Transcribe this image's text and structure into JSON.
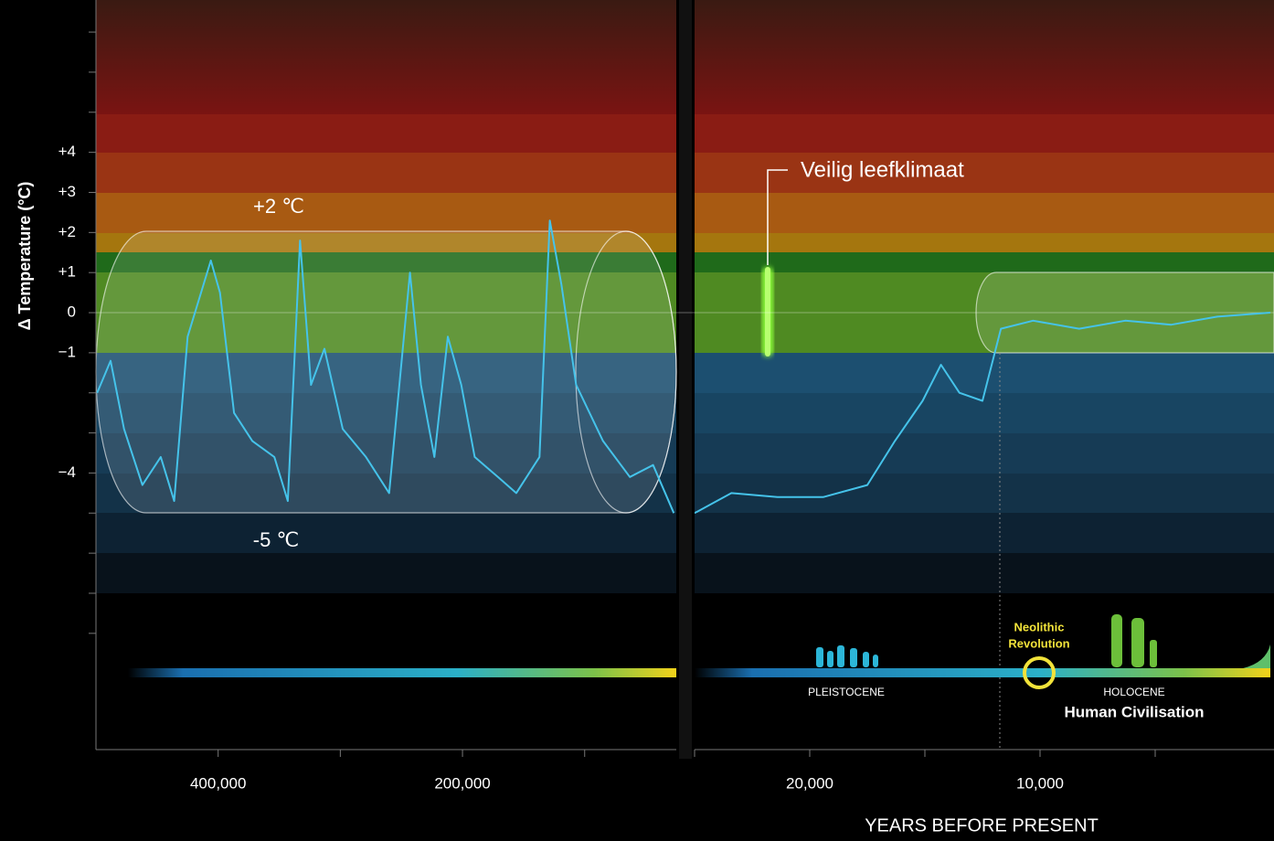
{
  "chart_data": [
    {
      "type": "line",
      "ylabel": "Δ Temperature (°C)",
      "xlim": [
        500000,
        25000
      ],
      "ylim": [
        -10.9,
        7.8
      ],
      "xticks": [
        {
          "value": 400000,
          "label": "400,000"
        },
        {
          "value": 300000,
          "label": null
        },
        {
          "value": 200000,
          "label": "200,000"
        },
        {
          "value": 100000,
          "label": null
        }
      ],
      "yticks": [
        {
          "value": 7,
          "label": null
        },
        {
          "value": 6,
          "label": null
        },
        {
          "value": 5,
          "label": null
        },
        {
          "value": 4,
          "label": "+4"
        },
        {
          "value": 3,
          "label": "+3"
        },
        {
          "value": 2,
          "label": "+2"
        },
        {
          "value": 1,
          "label": "+1"
        },
        0,
        {
          "value": -1,
          "label": "−1"
        },
        {
          "value": -2,
          "label": null
        },
        {
          "value": -3,
          "label": null
        },
        {
          "value": -4,
          "label": "−4"
        },
        {
          "value": -5,
          "label": null
        },
        {
          "value": -6,
          "label": null
        },
        {
          "value": -7,
          "label": null
        },
        {
          "value": -8,
          "label": null
        }
      ],
      "upper_label": "+2 ℃",
      "lower_label": "-5 ℃",
      "color": "#45c3ea",
      "x": [
        499000,
        488000,
        477000,
        462000,
        447000,
        436000,
        425000,
        406000,
        398500,
        387000,
        372000,
        354000,
        343000,
        333000,
        324000,
        313000,
        298000,
        279000,
        260000,
        243000,
        234000,
        223000,
        212000,
        201000,
        190000,
        171000,
        156000,
        137000,
        128500,
        119000,
        107000,
        85000,
        63000,
        44000,
        27000
      ],
      "values": [
        -2.0,
        -1.2,
        -2.9,
        -4.3,
        -3.6,
        -4.7,
        -0.6,
        1.3,
        0.5,
        -2.5,
        -3.2,
        -3.6,
        -4.7,
        1.8,
        -1.8,
        -0.9,
        -2.9,
        -3.6,
        -4.5,
        1.0,
        -1.8,
        -3.6,
        -0.6,
        -1.8,
        -3.6,
        -4.1,
        -4.5,
        -3.6,
        2.3,
        0.7,
        -1.8,
        -3.2,
        -4.1,
        -3.8,
        -5.0
      ]
    },
    {
      "type": "line",
      "xlabel": "YEARS BEFORE PRESENT",
      "xlim": [
        25000,
        0
      ],
      "ylim": [
        -10.9,
        7.8
      ],
      "xticks": [
        {
          "value": 25000,
          "label": null
        },
        {
          "value": 20000,
          "label": "20,000"
        },
        {
          "value": 15000,
          "label": null
        },
        {
          "value": 10000,
          "label": "10,000"
        },
        {
          "value": 5000,
          "label": null
        }
      ],
      "safe_label": "Veilig leefklimaat",
      "event_label": [
        "Neolithic",
        "Revolution"
      ],
      "period_left": "PLEISTOCENE",
      "period_right": "HOLOCENE",
      "era_label": "Human Civilisation",
      "color": "#45c3ea",
      "x": [
        25000,
        23400,
        21400,
        19400,
        17500,
        16300,
        15100,
        14300,
        13500,
        12500,
        11700,
        10300,
        8300,
        6300,
        4300,
        2300,
        0
      ],
      "values": [
        -5.0,
        -4.5,
        -4.6,
        -4.6,
        -4.3,
        -3.2,
        -2.2,
        -1.3,
        -2.0,
        -2.2,
        -0.4,
        -0.2,
        -0.4,
        -0.2,
        -0.3,
        -0.1,
        0.0
      ]
    }
  ]
}
